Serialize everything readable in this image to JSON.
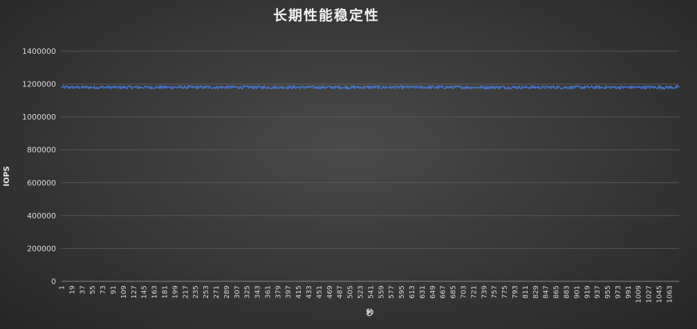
{
  "chart_data": {
    "type": "line",
    "title": "长期性能稳定性",
    "xlabel": "秒",
    "ylabel": "IOPS",
    "ylim": [
      0,
      1400000
    ],
    "yticks": [
      0,
      200000,
      400000,
      600000,
      800000,
      1000000,
      1200000,
      1400000
    ],
    "x_start": 1,
    "x_end": 1080,
    "x_tick_step": 18,
    "series": [
      {
        "color": "#4472C4",
        "baseline": 1180000,
        "min": 1170000,
        "max": 1190000
      }
    ],
    "grid": true,
    "legend": "none"
  }
}
